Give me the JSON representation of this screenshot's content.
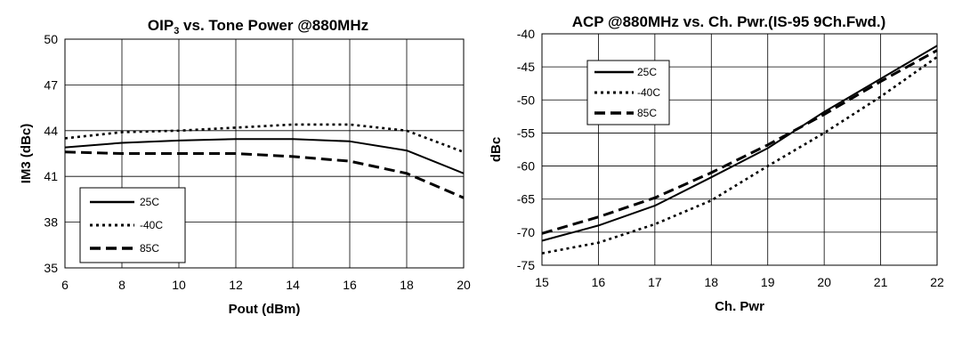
{
  "chart_data": [
    {
      "type": "line",
      "title": "OIP vs. Tone Power @880MHz",
      "title_parts": {
        "pre": "OIP",
        "sub": "3",
        "post": " vs. Tone Power @880MHz"
      },
      "xlabel": "Pout (dBm)",
      "ylabel": "IM3 (dBc)",
      "xlim": [
        6,
        20
      ],
      "ylim": [
        35,
        50
      ],
      "xticks": [
        "6",
        "8",
        "10",
        "12",
        "14",
        "16",
        "18",
        "20"
      ],
      "yticks": [
        "35",
        "38",
        "41",
        "44",
        "47",
        "50"
      ],
      "grid": true,
      "legend_position": "bottom-left",
      "series": [
        {
          "name": "25C",
          "style": "solid",
          "x": [
            6,
            8,
            10,
            12,
            14,
            16,
            18,
            20
          ],
          "y": [
            42.9,
            43.2,
            43.35,
            43.45,
            43.45,
            43.3,
            42.7,
            41.2
          ]
        },
        {
          "name": "-40C",
          "style": "dotted",
          "x": [
            6,
            8,
            10,
            12,
            14,
            16,
            18,
            20
          ],
          "y": [
            43.5,
            43.9,
            44.0,
            44.2,
            44.4,
            44.4,
            44.0,
            42.6
          ]
        },
        {
          "name": "85C",
          "style": "dashed",
          "x": [
            6,
            8,
            10,
            12,
            14,
            16,
            18,
            20
          ],
          "y": [
            42.6,
            42.5,
            42.5,
            42.5,
            42.3,
            42.0,
            41.2,
            39.6
          ]
        }
      ]
    },
    {
      "type": "line",
      "title": "ACP @880MHz vs. Ch. Pwr.(IS-95 9Ch.Fwd.)",
      "xlabel": "Ch. Pwr",
      "ylabel": "dBc",
      "xlim": [
        15,
        22
      ],
      "ylim": [
        -75,
        -40
      ],
      "xticks": [
        "15",
        "16",
        "17",
        "18",
        "19",
        "20",
        "21",
        "22"
      ],
      "yticks": [
        "-75",
        "-70",
        "-65",
        "-60",
        "-55",
        "-50",
        "-45",
        "-40"
      ],
      "grid": true,
      "legend_position": "top-left",
      "series": [
        {
          "name": "25C",
          "style": "solid",
          "x": [
            15,
            16,
            17,
            18,
            19,
            20,
            21,
            22
          ],
          "y": [
            -71.3,
            -69.0,
            -66.0,
            -61.7,
            -57.3,
            -51.8,
            -46.8,
            -41.8
          ]
        },
        {
          "name": "-40C",
          "style": "dotted",
          "x": [
            15,
            16,
            17,
            18,
            19,
            20,
            21,
            22
          ],
          "y": [
            -73.2,
            -71.6,
            -68.8,
            -65.2,
            -60.0,
            -55.0,
            -49.5,
            -43.5
          ]
        },
        {
          "name": "85C",
          "style": "dashed",
          "x": [
            15,
            16,
            17,
            18,
            19,
            20,
            21,
            22
          ],
          "y": [
            -70.2,
            -67.7,
            -64.8,
            -61.0,
            -56.8,
            -52.2,
            -47.2,
            -42.5
          ]
        }
      ]
    }
  ]
}
